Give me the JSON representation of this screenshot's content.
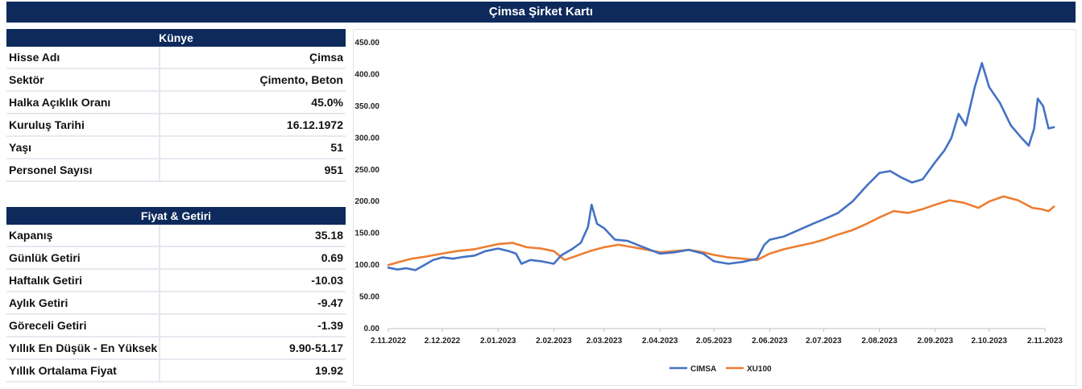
{
  "title": "Çimsa Şirket Kartı",
  "kunye": {
    "header": "Künye",
    "rows": [
      {
        "label": "Hisse Adı",
        "value": "Çimsa"
      },
      {
        "label": "Sektör",
        "value": "Çimento, Beton"
      },
      {
        "label": "Halka Açıklık Oranı",
        "value": "45.0%"
      },
      {
        "label": "Kuruluş Tarihi",
        "value": "16.12.1972"
      },
      {
        "label": "Yaşı",
        "value": "51"
      },
      {
        "label": "Personel Sayısı",
        "value": "951"
      }
    ]
  },
  "fiyat": {
    "header": "Fiyat & Getiri",
    "rows": [
      {
        "label": "Kapanış",
        "value": "35.18"
      },
      {
        "label": "Günlük Getiri",
        "value": "0.69"
      },
      {
        "label": "Haftalık Getiri",
        "value": "-10.03"
      },
      {
        "label": "Aylık Getiri",
        "value": "-9.47"
      },
      {
        "label": "Göreceli Getiri",
        "value": "-1.39"
      },
      {
        "label": "Yıllık En Düşük - En Yüksek",
        "value": "9.90-51.17"
      },
      {
        "label": "Yıllık Ortalama Fiyat",
        "value": "19.92"
      }
    ]
  },
  "chart_data": {
    "type": "line",
    "ylim": [
      0,
      450
    ],
    "y_ticks": [
      "0.00",
      "50.00",
      "100.00",
      "150.00",
      "200.00",
      "250.00",
      "300.00",
      "350.00",
      "400.00",
      "450.00"
    ],
    "x_ticks": [
      "2.11.2022",
      "2.12.2022",
      "2.01.2023",
      "2.02.2023",
      "2.03.2023",
      "2.04.2023",
      "2.05.2023",
      "2.06.2023",
      "2.07.2023",
      "2.08.2023",
      "2.09.2023",
      "2.10.2023",
      "2.11.2023"
    ],
    "legend_position": "bottom",
    "grid": false,
    "series": [
      {
        "name": "CIMSA",
        "color": "#4472c4",
        "points": [
          [
            "2.11.2022",
            96
          ],
          [
            "7.11.2022",
            93
          ],
          [
            "12.11.2022",
            95
          ],
          [
            "17.11.2022",
            92
          ],
          [
            "22.11.2022",
            100
          ],
          [
            "27.11.2022",
            108
          ],
          [
            "2.12.2022",
            112
          ],
          [
            "8.12.2022",
            110
          ],
          [
            "14.12.2022",
            113
          ],
          [
            "20.12.2022",
            115
          ],
          [
            "26.12.2022",
            122
          ],
          [
            "2.01.2023",
            126
          ],
          [
            "8.01.2023",
            122
          ],
          [
            "12.01.2023",
            118
          ],
          [
            "15.01.2023",
            102
          ],
          [
            "20.01.2023",
            108
          ],
          [
            "26.01.2023",
            106
          ],
          [
            "2.02.2023",
            102
          ],
          [
            "6.02.2023",
            115
          ],
          [
            "12.02.2023",
            125
          ],
          [
            "17.02.2023",
            135
          ],
          [
            "21.02.2023",
            160
          ],
          [
            "23.02.2023",
            195
          ],
          [
            "26.02.2023",
            165
          ],
          [
            "2.03.2023",
            158
          ],
          [
            "8.03.2023",
            140
          ],
          [
            "15.03.2023",
            138
          ],
          [
            "22.03.2023",
            130
          ],
          [
            "2.04.2023",
            118
          ],
          [
            "10.04.2023",
            120
          ],
          [
            "18.04.2023",
            124
          ],
          [
            "26.04.2023",
            118
          ],
          [
            "2.05.2023",
            106
          ],
          [
            "10.05.2023",
            102
          ],
          [
            "18.05.2023",
            105
          ],
          [
            "26.05.2023",
            110
          ],
          [
            "30.05.2023",
            132
          ],
          [
            "2.06.2023",
            140
          ],
          [
            "10.06.2023",
            145
          ],
          [
            "18.06.2023",
            155
          ],
          [
            "26.06.2023",
            165
          ],
          [
            "2.07.2023",
            172
          ],
          [
            "10.07.2023",
            182
          ],
          [
            "18.07.2023",
            200
          ],
          [
            "26.07.2023",
            225
          ],
          [
            "2.08.2023",
            245
          ],
          [
            "8.08.2023",
            248
          ],
          [
            "14.08.2023",
            238
          ],
          [
            "20.08.2023",
            230
          ],
          [
            "26.08.2023",
            235
          ],
          [
            "2.09.2023",
            262
          ],
          [
            "7.09.2023",
            280
          ],
          [
            "11.09.2023",
            300
          ],
          [
            "15.09.2023",
            338
          ],
          [
            "19.09.2023",
            320
          ],
          [
            "24.09.2023",
            380
          ],
          [
            "28.09.2023",
            418
          ],
          [
            "2.10.2023",
            380
          ],
          [
            "8.10.2023",
            355
          ],
          [
            "14.10.2023",
            320
          ],
          [
            "20.10.2023",
            300
          ],
          [
            "24.10.2023",
            288
          ],
          [
            "27.10.2023",
            315
          ],
          [
            "29.10.2023",
            362
          ],
          [
            "1.11.2023",
            350
          ],
          [
            "4.11.2023",
            315
          ],
          [
            "7.11.2023",
            317
          ]
        ]
      },
      {
        "name": "XU100",
        "color": "#ed7d31",
        "points": [
          [
            "2.11.2022",
            100
          ],
          [
            "8.11.2022",
            105
          ],
          [
            "15.11.2022",
            110
          ],
          [
            "22.11.2022",
            113
          ],
          [
            "2.12.2022",
            118
          ],
          [
            "10.12.2022",
            122
          ],
          [
            "20.12.2022",
            125
          ],
          [
            "2.01.2023",
            133
          ],
          [
            "10.01.2023",
            135
          ],
          [
            "18.01.2023",
            128
          ],
          [
            "26.01.2023",
            126
          ],
          [
            "2.02.2023",
            122
          ],
          [
            "8.02.2023",
            108
          ],
          [
            "15.02.2023",
            115
          ],
          [
            "22.02.2023",
            122
          ],
          [
            "2.03.2023",
            128
          ],
          [
            "10.03.2023",
            132
          ],
          [
            "18.03.2023",
            128
          ],
          [
            "26.03.2023",
            124
          ],
          [
            "2.04.2023",
            120
          ],
          [
            "10.04.2023",
            122
          ],
          [
            "18.04.2023",
            124
          ],
          [
            "26.04.2023",
            120
          ],
          [
            "2.05.2023",
            116
          ],
          [
            "10.05.2023",
            112
          ],
          [
            "18.05.2023",
            110
          ],
          [
            "26.05.2023",
            108
          ],
          [
            "2.06.2023",
            118
          ],
          [
            "10.06.2023",
            125
          ],
          [
            "18.06.2023",
            130
          ],
          [
            "26.06.2023",
            135
          ],
          [
            "2.07.2023",
            140
          ],
          [
            "10.07.2023",
            148
          ],
          [
            "18.07.2023",
            155
          ],
          [
            "26.07.2023",
            165
          ],
          [
            "2.08.2023",
            175
          ],
          [
            "10.08.2023",
            185
          ],
          [
            "18.08.2023",
            182
          ],
          [
            "26.08.2023",
            188
          ],
          [
            "2.09.2023",
            195
          ],
          [
            "10.09.2023",
            202
          ],
          [
            "18.09.2023",
            198
          ],
          [
            "26.09.2023",
            190
          ],
          [
            "2.10.2023",
            200
          ],
          [
            "10.10.2023",
            208
          ],
          [
            "18.10.2023",
            202
          ],
          [
            "26.10.2023",
            190
          ],
          [
            "31.10.2023",
            188
          ],
          [
            "4.11.2023",
            185
          ],
          [
            "7.11.2023",
            192
          ]
        ]
      }
    ]
  }
}
